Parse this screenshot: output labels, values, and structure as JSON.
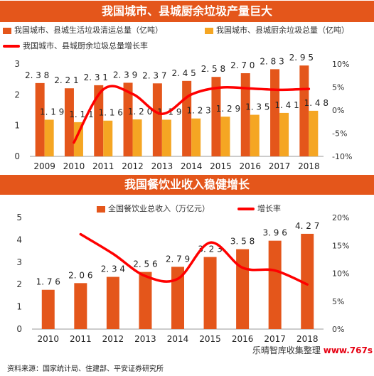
{
  "chart_data": [
    {
      "type": "bar",
      "title": "我国城市、县城厨余垃圾产量巨大",
      "categories": [
        "2009",
        "2010",
        "2011",
        "2012",
        "2013",
        "2014",
        "2015",
        "2016",
        "2017",
        "2018"
      ],
      "series": [
        {
          "name": "我国城市、县城生活垃圾清运总量（亿吨）",
          "type": "bar",
          "axis": "left",
          "color": "#e4561b",
          "values": [
            2.38,
            2.21,
            2.31,
            2.39,
            2.37,
            2.45,
            2.58,
            2.7,
            2.83,
            2.95
          ]
        },
        {
          "name": "我国城市、县城厨余垃圾总量（亿吨）",
          "type": "bar",
          "axis": "left",
          "color": "#f5a623",
          "values": [
            1.19,
            1.11,
            1.16,
            1.2,
            1.19,
            1.23,
            1.29,
            1.35,
            1.41,
            1.48
          ]
        },
        {
          "name": "我国城市、县城厨余垃圾总量增长率",
          "type": "line",
          "axis": "right",
          "color": "#ff0000",
          "values": [
            null,
            -7.0,
            4.5,
            3.5,
            -0.8,
            3.4,
            4.9,
            4.7,
            4.4,
            4.6
          ]
        }
      ],
      "ylim": [
        0,
        3
      ],
      "yticks": [
        0,
        1,
        2,
        3
      ],
      "y2lim": [
        -10,
        10
      ],
      "y2ticks": [
        "-10%",
        "-5%",
        "0%",
        "5%",
        "10%"
      ],
      "y2tick_values": [
        -10,
        -5,
        0,
        5,
        10
      ],
      "grid": false,
      "legend": "top"
    },
    {
      "type": "bar",
      "title": "我国餐饮业收入稳健增长",
      "categories": [
        "2010",
        "2011",
        "2012",
        "2013",
        "2014",
        "2015",
        "2016",
        "2017",
        "2018"
      ],
      "series": [
        {
          "name": "全国餐饮业总收入（万亿元）",
          "type": "bar",
          "axis": "left",
          "color": "#e4561b",
          "values": [
            1.76,
            2.06,
            2.34,
            2.56,
            2.79,
            3.23,
            3.58,
            3.96,
            4.27
          ]
        },
        {
          "name": "增长率",
          "type": "line",
          "axis": "right",
          "color": "#ff0000",
          "values": [
            null,
            17.0,
            13.5,
            9.5,
            9.0,
            15.5,
            11.0,
            10.5,
            8.0
          ]
        }
      ],
      "ylim": [
        0,
        5
      ],
      "yticks": [
        0,
        1,
        2,
        3,
        4,
        5
      ],
      "y2lim": [
        0,
        20
      ],
      "y2ticks": [
        "0%",
        "5%",
        "10%",
        "15%",
        "20%"
      ],
      "y2tick_values": [
        0,
        5,
        10,
        15,
        20
      ],
      "grid": false,
      "legend": "top"
    }
  ],
  "source": "资料来源：国家统计局、住建部、平安证券研究所",
  "watermark": {
    "text": "乐晴智库收集整理",
    "url": "www.767s"
  }
}
